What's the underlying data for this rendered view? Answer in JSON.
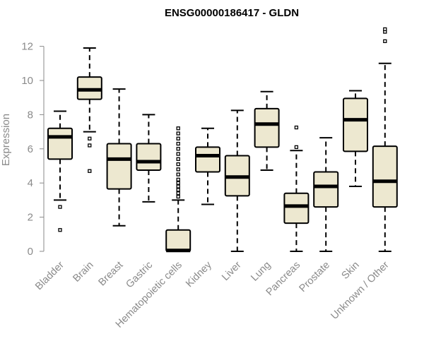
{
  "chart_data": {
    "type": "box",
    "title": "ENSG00000186417 - GLDN",
    "ylabel": "Expression",
    "xlabel": "",
    "ylim": [
      0,
      12.5
    ],
    "yticks": [
      0,
      2,
      4,
      6,
      8,
      10,
      12
    ],
    "grid": false,
    "colors": {
      "box_fill": "#ede8d0",
      "stroke": "#000000",
      "axis": "#8a8a8a"
    },
    "categories": [
      "Bladder",
      "Brain",
      "Breast",
      "Gastric",
      "Hematopoietic cells",
      "Kidney",
      "Liver",
      "Lung",
      "Pancreas",
      "Prostate",
      "Skin",
      "Unknown / Other"
    ],
    "boxes": [
      {
        "q1": 5.4,
        "median": 6.7,
        "q3": 7.2,
        "low": 3.0,
        "high": 8.2,
        "outliers": [
          2.6,
          1.25
        ]
      },
      {
        "q1": 8.9,
        "median": 9.45,
        "q3": 10.2,
        "low": 7.0,
        "high": 11.9,
        "outliers": [
          6.6,
          6.2,
          4.7
        ]
      },
      {
        "q1": 3.65,
        "median": 5.4,
        "q3": 6.3,
        "low": 1.5,
        "high": 9.5,
        "outliers": []
      },
      {
        "q1": 4.75,
        "median": 5.25,
        "q3": 6.3,
        "low": 2.9,
        "high": 8.0,
        "outliers": []
      },
      {
        "q1": 0.0,
        "median": 0.05,
        "q3": 1.25,
        "low": 0.0,
        "high": 3.0,
        "outliers": [
          3.2,
          3.4,
          3.6,
          3.8,
          4.0,
          4.2,
          4.5,
          4.8,
          5.1,
          5.4,
          5.7,
          6.0,
          6.3,
          6.6,
          6.9,
          7.2
        ]
      },
      {
        "q1": 4.65,
        "median": 5.6,
        "q3": 6.1,
        "low": 2.75,
        "high": 7.2,
        "outliers": []
      },
      {
        "q1": 3.25,
        "median": 4.35,
        "q3": 5.6,
        "low": 0.0,
        "high": 8.25,
        "outliers": []
      },
      {
        "q1": 6.1,
        "median": 7.45,
        "q3": 8.35,
        "low": 4.75,
        "high": 9.35,
        "outliers": []
      },
      {
        "q1": 1.65,
        "median": 2.65,
        "q3": 3.4,
        "low": 0.0,
        "high": 5.9,
        "outliers": [
          6.1,
          7.25
        ]
      },
      {
        "q1": 2.6,
        "median": 3.8,
        "q3": 4.65,
        "low": 0.0,
        "high": 6.65,
        "outliers": []
      },
      {
        "q1": 5.85,
        "median": 7.7,
        "q3": 8.95,
        "low": 3.8,
        "high": 9.4,
        "outliers": []
      },
      {
        "q1": 2.6,
        "median": 4.1,
        "q3": 6.15,
        "low": 0.0,
        "high": 11.0,
        "outliers": [
          12.3,
          12.85,
          13.0
        ]
      }
    ]
  }
}
